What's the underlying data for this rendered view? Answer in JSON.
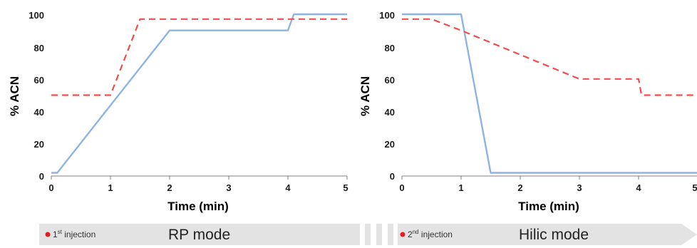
{
  "chart_data": [
    {
      "type": "line",
      "title": "",
      "xlabel": "Time (min)",
      "ylabel": "% ACN",
      "xlim": [
        0,
        5
      ],
      "ylim": [
        0,
        100
      ],
      "x_ticks": [
        "0",
        "1",
        "2",
        "3",
        "4",
        "5"
      ],
      "y_ticks": [
        "0",
        "20",
        "40",
        "60",
        "80",
        "100"
      ],
      "grid": false,
      "series": [
        {
          "x": [
            0,
            0.1,
            2,
            4,
            4.1,
            5
          ],
          "y": [
            2,
            2,
            90,
            90,
            100,
            100
          ],
          "color": "#8eb4e3",
          "style": "solid"
        },
        {
          "x": [
            0,
            1,
            1.5,
            5
          ],
          "y": [
            50,
            50,
            97,
            97
          ],
          "color": "#f24c4c",
          "style": "dashed"
        }
      ]
    },
    {
      "type": "line",
      "title": "",
      "xlabel": "Time (min)",
      "ylabel": "% ACN",
      "xlim": [
        0,
        5
      ],
      "ylim": [
        0,
        100
      ],
      "x_ticks": [
        "0",
        "1",
        "2",
        "3",
        "4",
        "5"
      ],
      "y_ticks": [
        "0",
        "20",
        "40",
        "60",
        "80",
        "100"
      ],
      "grid": false,
      "series": [
        {
          "x": [
            0,
            1,
            1.5,
            5
          ],
          "y": [
            100,
            100,
            2,
            2
          ],
          "color": "#8eb4e3",
          "style": "solid"
        },
        {
          "x": [
            0,
            0.5,
            1,
            3,
            4,
            4.05,
            5
          ],
          "y": [
            97,
            97,
            90,
            60,
            60,
            50,
            50
          ],
          "color": "#f24c4c",
          "style": "dashed"
        }
      ]
    }
  ],
  "timeline": {
    "band_color": "#e3e3e3",
    "marker_color": "#e02020",
    "segments": [
      {
        "label_main": "1",
        "label_sup": "st",
        "label_rest": " injection",
        "mode": "RP mode"
      },
      {
        "label_main": "2",
        "label_sup": "nd",
        "label_rest": " injection",
        "mode": "Hilic mode"
      }
    ]
  }
}
